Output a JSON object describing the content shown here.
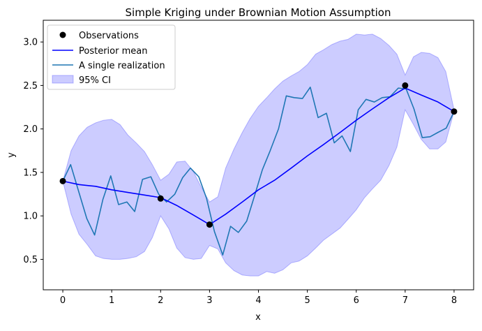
{
  "chart_data": {
    "type": "line",
    "title": "Simple Kriging under Brownian Motion Assumption",
    "xlabel": "x",
    "ylabel": "y",
    "xlim": [
      -0.4,
      8.4
    ],
    "ylim": [
      0.15,
      3.25
    ],
    "xticks": [
      0,
      1,
      2,
      3,
      4,
      5,
      6,
      7,
      8
    ],
    "yticks": [
      0.5,
      1.0,
      1.5,
      2.0,
      2.5,
      3.0
    ],
    "xtick_labels": [
      "0",
      "1",
      "2",
      "3",
      "4",
      "5",
      "6",
      "7",
      "8"
    ],
    "ytick_labels": [
      "0.5",
      "1.0",
      "1.5",
      "2.0",
      "2.5",
      "3.0"
    ],
    "grid": false,
    "legend_position": "top-left",
    "legend": {
      "observations": "Observations",
      "posterior_mean": "Posterior mean",
      "realization": "A single realization",
      "ci": "95% CI"
    },
    "colors": {
      "observations": "#000000",
      "posterior_mean": "#0000ff",
      "realization": "#1f77b4",
      "ci_fill": "#0000ff"
    },
    "observations": {
      "x": [
        0,
        2,
        3,
        7,
        8
      ],
      "y": [
        1.4,
        1.2,
        0.9,
        2.5,
        2.2
      ]
    },
    "posterior_mean": {
      "x": [
        0,
        0.33,
        0.67,
        1,
        1.33,
        1.67,
        2,
        2.33,
        2.67,
        3,
        3.33,
        3.67,
        4,
        4.33,
        4.67,
        5,
        5.33,
        5.67,
        6,
        6.33,
        6.67,
        7,
        7.33,
        7.67,
        8
      ],
      "y": [
        1.4,
        1.36,
        1.34,
        1.3,
        1.27,
        1.24,
        1.21,
        1.12,
        1.01,
        0.9,
        1.02,
        1.16,
        1.3,
        1.41,
        1.55,
        1.69,
        1.82,
        1.96,
        2.1,
        2.23,
        2.36,
        2.47,
        2.39,
        2.31,
        2.2
      ]
    },
    "ci_band": {
      "x": [
        0,
        0.17,
        0.33,
        0.5,
        0.67,
        0.83,
        1,
        1.17,
        1.33,
        1.5,
        1.67,
        1.83,
        2,
        2.17,
        2.33,
        2.5,
        2.67,
        2.83,
        3,
        3.17,
        3.33,
        3.5,
        3.67,
        3.83,
        4,
        4.17,
        4.33,
        4.5,
        4.67,
        4.83,
        5,
        5.17,
        5.33,
        5.5,
        5.67,
        5.83,
        6,
        6.17,
        6.33,
        6.5,
        6.67,
        6.83,
        7,
        7.17,
        7.33,
        7.5,
        7.67,
        7.83,
        8
      ],
      "upper": [
        1.4,
        1.75,
        1.92,
        2.02,
        2.07,
        2.1,
        2.11,
        2.05,
        1.93,
        1.84,
        1.74,
        1.59,
        1.41,
        1.48,
        1.62,
        1.63,
        1.51,
        1.33,
        1.16,
        1.22,
        1.55,
        1.77,
        1.96,
        2.12,
        2.26,
        2.36,
        2.46,
        2.55,
        2.61,
        2.66,
        2.74,
        2.86,
        2.91,
        2.97,
        3.01,
        3.03,
        3.09,
        3.08,
        3.09,
        3.04,
        2.96,
        2.86,
        2.62,
        2.83,
        2.88,
        2.87,
        2.82,
        2.66,
        2.22
      ],
      "lower": [
        1.4,
        1.02,
        0.79,
        0.67,
        0.54,
        0.51,
        0.5,
        0.5,
        0.51,
        0.53,
        0.59,
        0.75,
        1.0,
        0.85,
        0.63,
        0.52,
        0.5,
        0.51,
        0.66,
        0.62,
        0.46,
        0.37,
        0.32,
        0.31,
        0.31,
        0.36,
        0.34,
        0.38,
        0.46,
        0.48,
        0.54,
        0.63,
        0.72,
        0.79,
        0.86,
        0.96,
        1.07,
        1.21,
        1.31,
        1.41,
        1.58,
        1.79,
        2.22,
        2.05,
        1.88,
        1.77,
        1.77,
        1.85,
        2.2
      ]
    },
    "realization": {
      "x": [
        0,
        0.16,
        0.33,
        0.49,
        0.65,
        0.82,
        0.98,
        1.14,
        1.31,
        1.47,
        1.63,
        1.8,
        1.96,
        2.12,
        2.29,
        2.45,
        2.61,
        2.78,
        2.94,
        3.1,
        3.27,
        3.43,
        3.59,
        3.76,
        3.92,
        4.08,
        4.24,
        4.41,
        4.57,
        4.73,
        4.9,
        5.06,
        5.22,
        5.39,
        5.55,
        5.71,
        5.88,
        6.04,
        6.2,
        6.37,
        6.53,
        6.69,
        6.86,
        7.02,
        7.18,
        7.35,
        7.51,
        7.67,
        7.84,
        8
      ],
      "y": [
        1.4,
        1.59,
        1.27,
        0.97,
        0.78,
        1.19,
        1.46,
        1.13,
        1.16,
        1.05,
        1.42,
        1.45,
        1.25,
        1.16,
        1.25,
        1.44,
        1.55,
        1.45,
        1.2,
        0.82,
        0.55,
        0.88,
        0.81,
        0.94,
        1.23,
        1.53,
        1.75,
        2.0,
        2.38,
        2.36,
        2.35,
        2.48,
        2.13,
        2.18,
        1.84,
        1.92,
        1.74,
        2.22,
        2.34,
        2.31,
        2.36,
        2.37,
        2.47,
        2.46,
        2.23,
        1.9,
        1.91,
        1.96,
        2.01,
        2.2
      ]
    }
  }
}
